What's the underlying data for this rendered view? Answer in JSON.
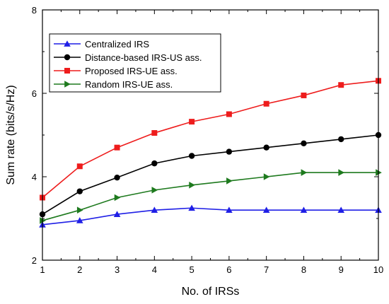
{
  "chart_data": {
    "type": "line",
    "title": "",
    "xlabel": "No. of IRSs",
    "ylabel": "Sum rate (bits/s/Hz)",
    "xlim": [
      1,
      10
    ],
    "ylim": [
      2,
      8
    ],
    "x_ticks": [
      "1",
      "2",
      "3",
      "4",
      "5",
      "6",
      "7",
      "8",
      "9",
      "10"
    ],
    "y_ticks": [
      "2",
      "4",
      "6",
      "8"
    ],
    "grid": false,
    "legend_position": "top-left",
    "x": [
      1,
      2,
      3,
      4,
      5,
      6,
      7,
      8,
      9,
      10
    ],
    "series": [
      {
        "name": "Centralized IRS",
        "color": "#1f1fe6",
        "marker": "triangle-up",
        "values": [
          2.85,
          2.95,
          3.1,
          3.2,
          3.25,
          3.2,
          3.2,
          3.2,
          3.2,
          3.2
        ]
      },
      {
        "name": "Distance-based IRS-US ass.",
        "color": "#000000",
        "marker": "circle",
        "values": [
          3.1,
          3.65,
          3.98,
          4.32,
          4.5,
          4.6,
          4.7,
          4.8,
          4.9,
          5.0
        ]
      },
      {
        "name": "Proposed IRS-UE ass.",
        "color": "#ee1c1c",
        "marker": "square",
        "values": [
          3.5,
          4.25,
          4.7,
          5.05,
          5.32,
          5.5,
          5.75,
          5.95,
          6.2,
          6.3
        ]
      },
      {
        "name": "Random IRS-UE ass.",
        "color": "#1e7a1e",
        "marker": "triangle-right",
        "values": [
          2.95,
          3.2,
          3.5,
          3.68,
          3.8,
          3.9,
          4.0,
          4.1,
          4.1,
          4.1
        ]
      }
    ]
  }
}
